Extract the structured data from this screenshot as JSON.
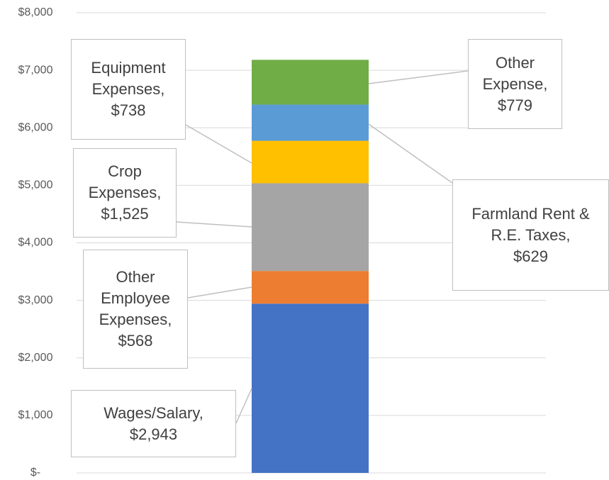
{
  "chart_data": {
    "type": "stacked_bar",
    "series": [
      {
        "name": "Wages/Salary",
        "color": "#4472c4",
        "values": [
          2943
        ],
        "value_labels": [
          "$2,943"
        ]
      },
      {
        "name": "Other Employee Expenses",
        "color": "#ed7d31",
        "values": [
          568
        ],
        "value_labels": [
          "$568"
        ]
      },
      {
        "name": "Crop Expenses",
        "color": "#a5a5a5",
        "values": [
          1525
        ],
        "value_labels": [
          "$1,525"
        ]
      },
      {
        "name": "Equipment Expenses",
        "color": "#ffc000",
        "values": [
          738
        ],
        "value_labels": [
          "$738"
        ]
      },
      {
        "name": "Farmland Rent & R.E. Taxes",
        "color": "#5b9bd5",
        "values": [
          629
        ],
        "value_labels": [
          "$629"
        ]
      },
      {
        "name": "Other Expense",
        "color": "#70ad47",
        "values": [
          779
        ],
        "value_labels": [
          "$779"
        ]
      }
    ],
    "ylim": [
      0,
      8000
    ],
    "yticks": [
      {
        "value": 0,
        "label": "$-"
      },
      {
        "value": 1000,
        "label": "$1,000"
      },
      {
        "value": 2000,
        "label": "$2,000"
      },
      {
        "value": 3000,
        "label": "$3,000"
      },
      {
        "value": 4000,
        "label": "$4,000"
      },
      {
        "value": 5000,
        "label": "$5,000"
      },
      {
        "value": 6000,
        "label": "$6,000"
      },
      {
        "value": 7000,
        "label": "$7,000"
      },
      {
        "value": 8000,
        "label": "$8,000"
      }
    ],
    "grid": true
  }
}
